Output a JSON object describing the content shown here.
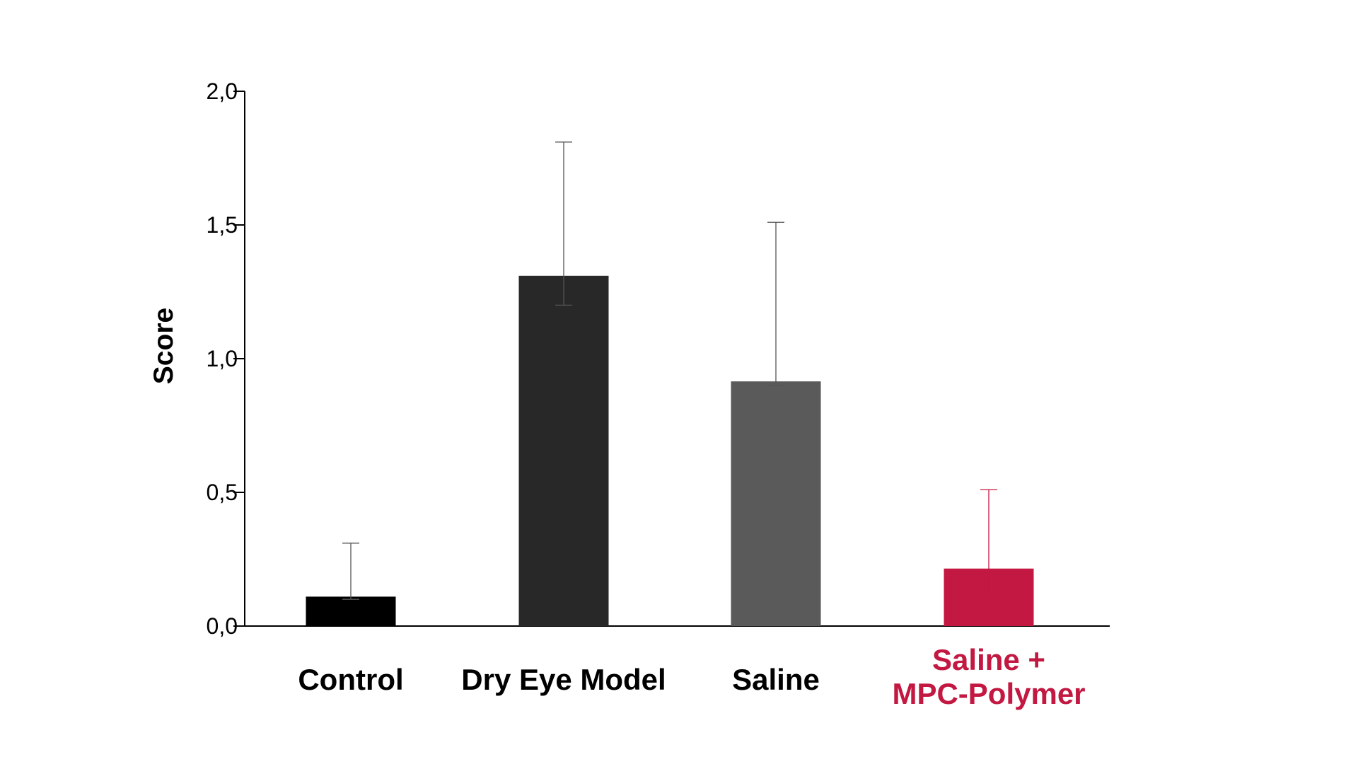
{
  "chart_data": {
    "type": "bar",
    "title": "",
    "xlabel": "",
    "ylabel": "Score",
    "ylim": [
      0,
      2.0
    ],
    "yticks": [
      0.0,
      0.5,
      1.0,
      1.5,
      2.0
    ],
    "ytick_labels": [
      "0,0",
      "0,5",
      "1,0",
      "1,5",
      "2,0"
    ],
    "grid": false,
    "legend": "none",
    "categories": [
      {
        "lines": [
          "Control"
        ],
        "value": 0.11,
        "err_low": 0.1,
        "err_high": 0.31,
        "color": "#000000",
        "error_color": "#555555",
        "label_color": "#000000"
      },
      {
        "lines": [
          "Dry Eye Model"
        ],
        "value": 1.31,
        "err_low": 1.2,
        "err_high": 1.81,
        "color": "#282828",
        "error_color": "#555555",
        "label_color": "#000000"
      },
      {
        "lines": [
          "Saline"
        ],
        "value": 0.915,
        "err_low": 0.9,
        "err_high": 1.51,
        "color": "#5a5a5a",
        "error_color": "#555555",
        "label_color": "#000000"
      },
      {
        "lines": [
          "Saline +",
          "MPC-Polymer"
        ],
        "value": 0.215,
        "err_low": 0.1,
        "err_high": 0.51,
        "color": "#c21841",
        "error_color": "#c21841",
        "label_color": "#c21841"
      }
    ]
  }
}
